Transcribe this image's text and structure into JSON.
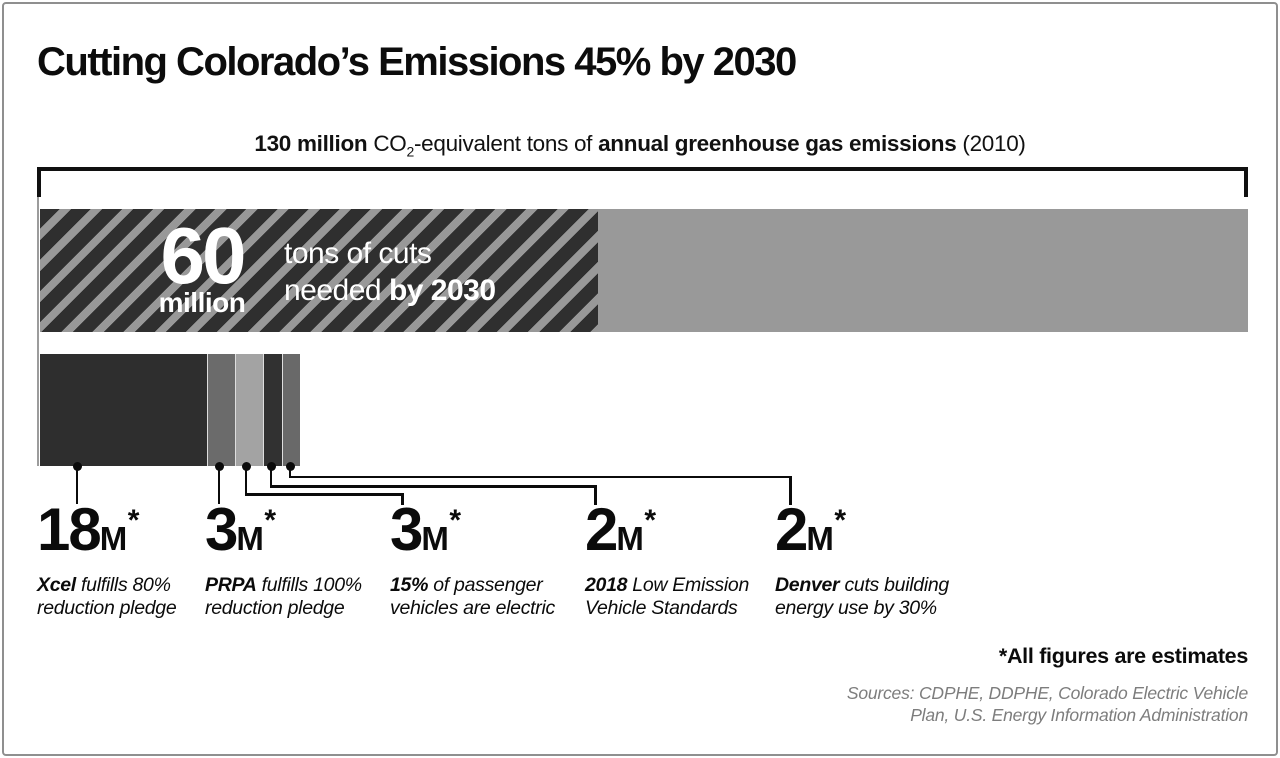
{
  "title": "Cutting Colorado’s Emissions 45% by 2030",
  "subtitle": {
    "amount_bold": "130 million",
    "co2": "CO",
    "co2_sub": "2",
    "equivalent_text": "-equivalent tons of",
    "emissions_bold": "annual greenhouse gas emissions",
    "year": "(2010)"
  },
  "cuts_callout": {
    "value": "60",
    "unit": "million",
    "line1": "tons of cuts",
    "line2_prefix": "needed",
    "line2_bold": "by 2030"
  },
  "colors": {
    "remaining_bar": "#999999",
    "hatch_dark": "#2f2f2f",
    "hatch_light": "#989898"
  },
  "segments": [
    {
      "value": "18",
      "unit": "M",
      "star": "*",
      "million_tons": 18,
      "color": "#2e2e2e",
      "desc_lead": "Xcel",
      "desc_line1_rest": " fulfills 80%",
      "desc_line2": "reduction pledge"
    },
    {
      "value": "3",
      "unit": "M",
      "star": "*",
      "million_tons": 3,
      "color": "#6b6b6b",
      "desc_lead": "PRPA",
      "desc_line1_rest": " fulfills 100%",
      "desc_line2": "reduction pledge"
    },
    {
      "value": "3",
      "unit": "M",
      "star": "*",
      "million_tons": 3,
      "color": "#a3a3a3",
      "desc_lead": "15%",
      "desc_line1_rest": " of passenger",
      "desc_line2": "vehicles are electric"
    },
    {
      "value": "2",
      "unit": "M",
      "star": "*",
      "million_tons": 2,
      "color": "#313131",
      "desc_lead": "2018",
      "desc_line1_rest": " Low Emission",
      "desc_line2": "Vehicle Standards"
    },
    {
      "value": "2",
      "unit": "M",
      "star": "*",
      "million_tons": 2,
      "color": "#696969",
      "desc_lead": "Denver",
      "desc_line1_rest": " cuts building",
      "desc_line2": "energy use by 30%"
    }
  ],
  "footnote": "*All figures are estimates",
  "sources": {
    "line1": "Sources: CDPHE, DDPHE, Colorado Electric Vehicle",
    "line2": "Plan, U.S. Energy Information Administration"
  },
  "chart_data": {
    "type": "bar",
    "title": "Cutting Colorado’s Emissions 45% by 2030",
    "total_label": "130 million CO2-equivalent tons of annual greenhouse gas emissions (2010)",
    "total_million_tons": 130,
    "cuts_needed_million_tons": 60,
    "cuts_needed_label": "60 million tons of cuts needed by 2030",
    "units": "million CO2-equivalent tons per year",
    "categories": [
      "Xcel fulfills 80% reduction pledge",
      "PRPA fulfills 100% reduction pledge",
      "15% of passenger vehicles are electric",
      "2018 Low Emission Vehicle Standards",
      "Denver cuts building energy use by 30%"
    ],
    "values": [
      18,
      3,
      3,
      2,
      2
    ],
    "values_are_estimates": true,
    "xlim": [
      0,
      130
    ],
    "legend_position": "none",
    "grid": false
  }
}
